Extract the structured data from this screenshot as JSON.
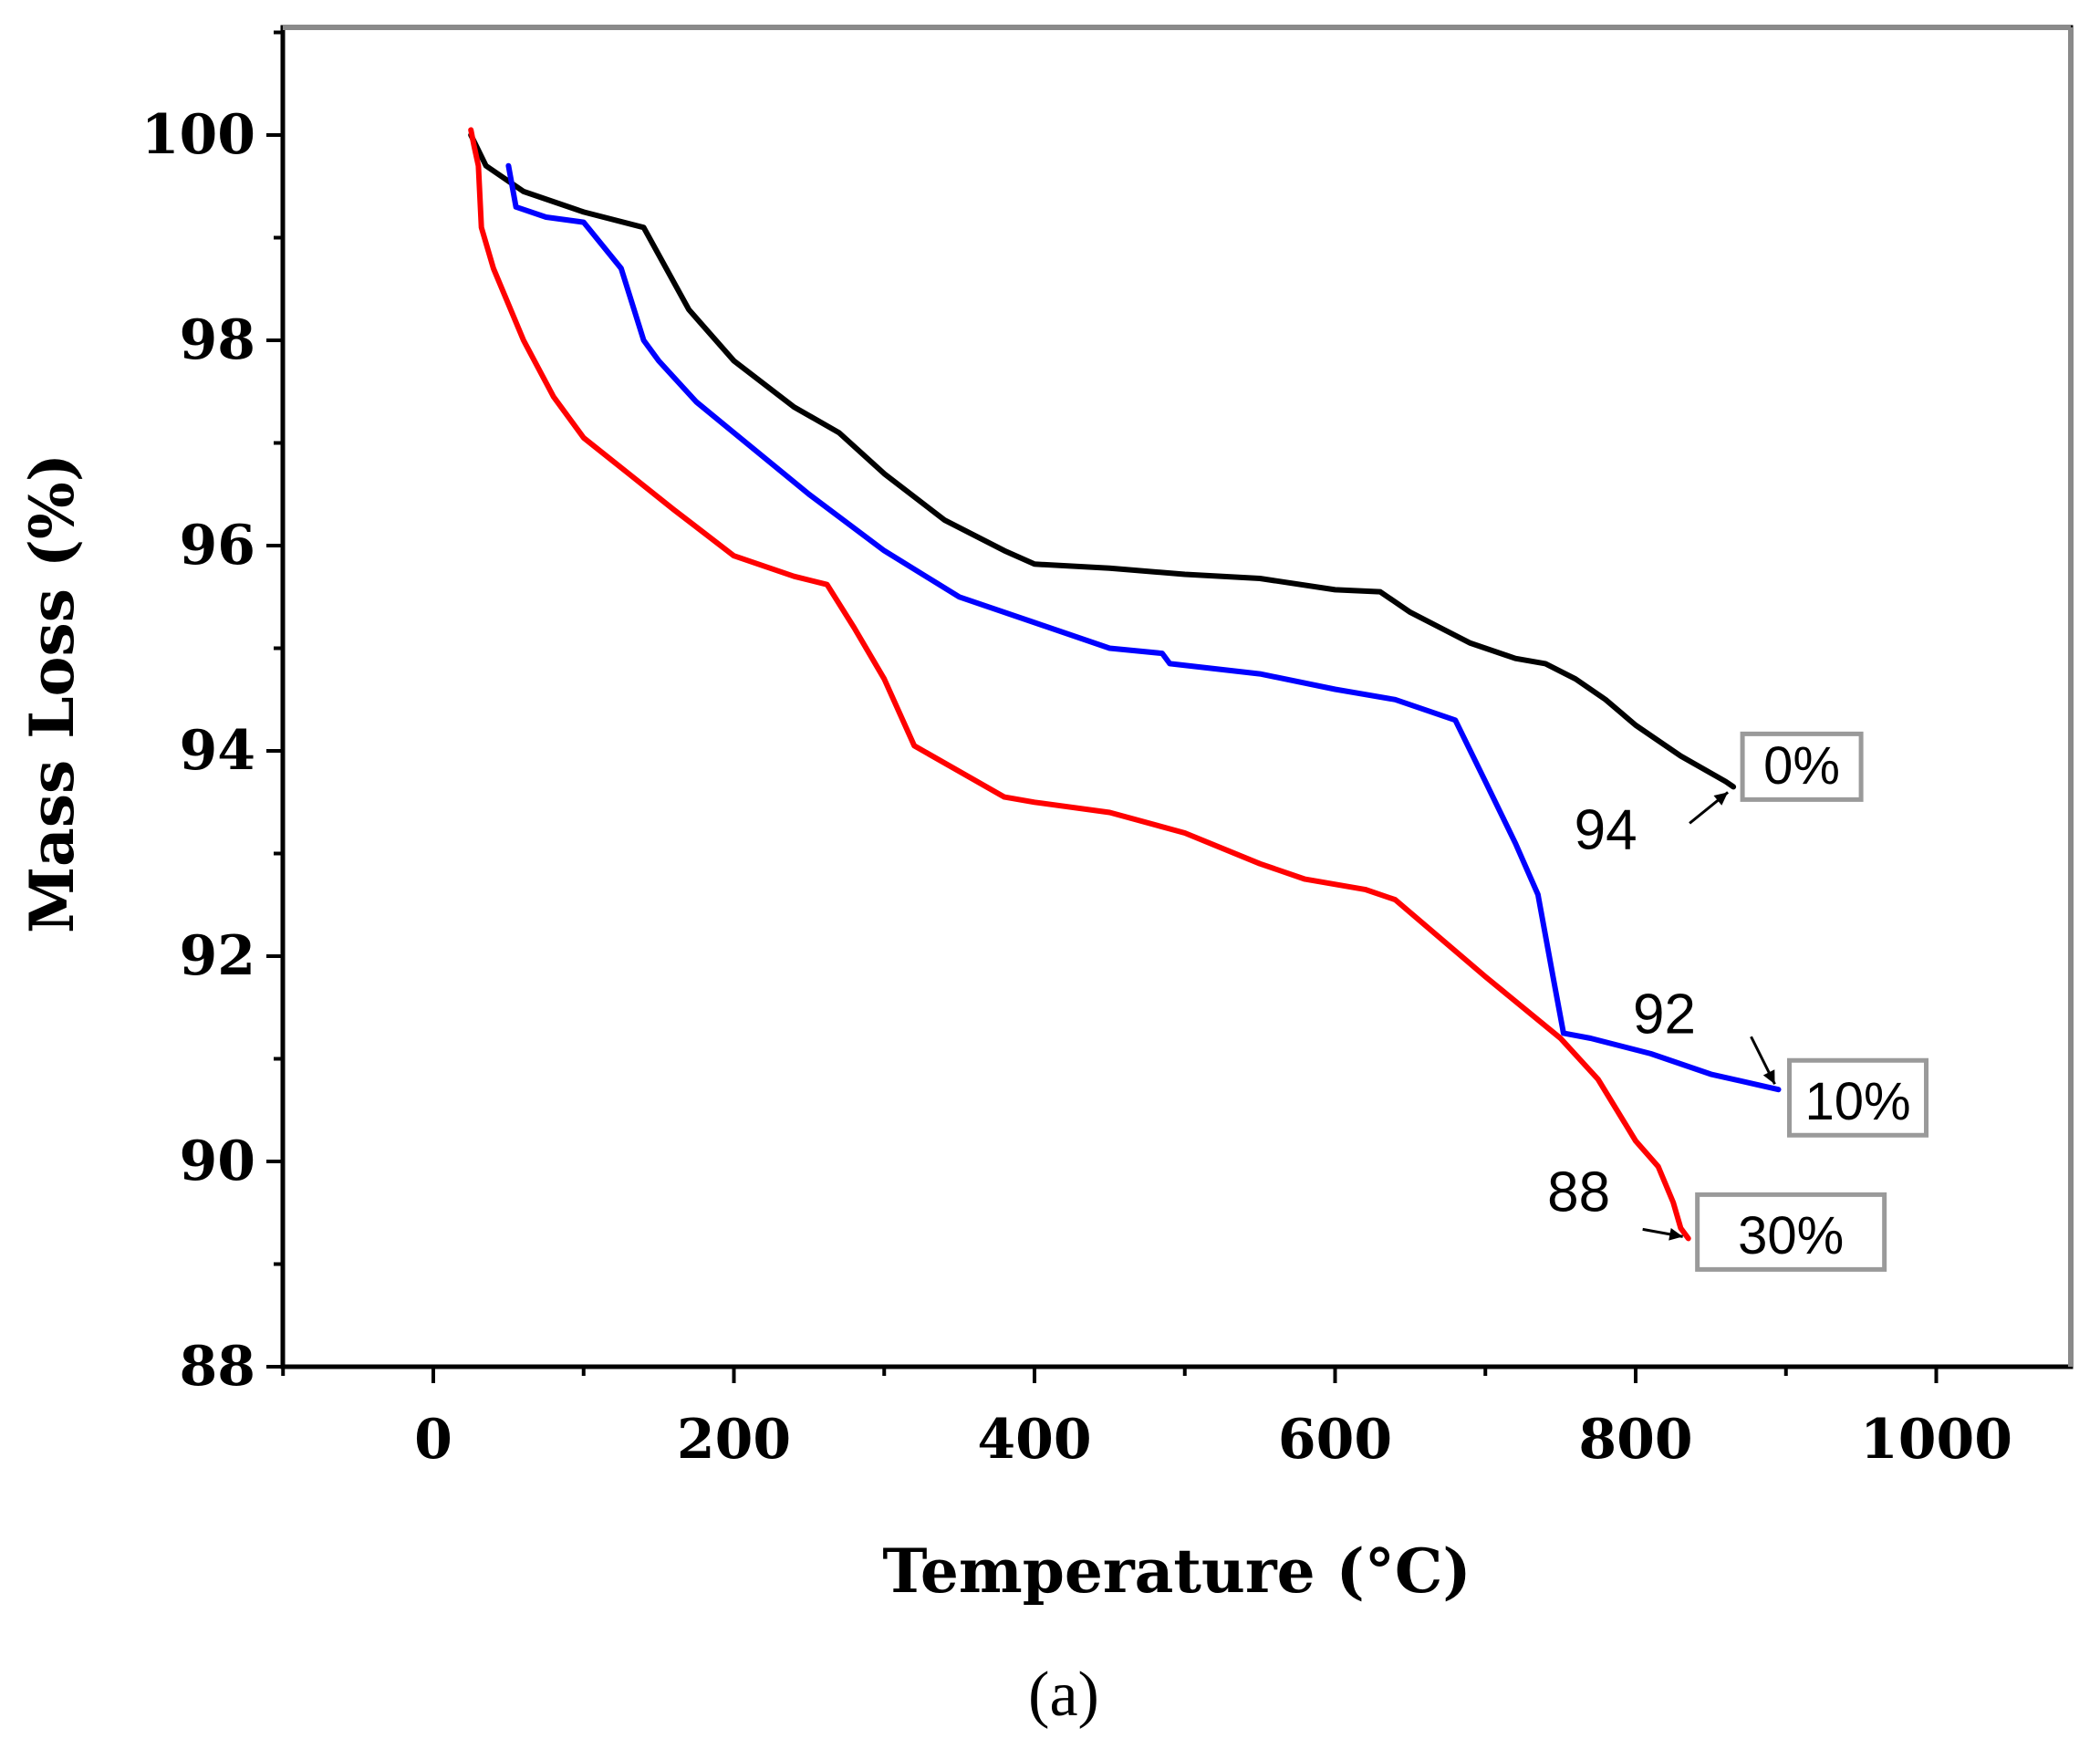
{
  "chart_data": {
    "type": "line",
    "panel_label": "(a)",
    "xlabel": "Temperature (°C)",
    "ylabel": "Mass Loss (%)",
    "xlim": [
      -100,
      1090
    ],
    "ylim": [
      88,
      101.1
    ],
    "xticks": [
      0,
      200,
      400,
      600,
      800,
      1000
    ],
    "yticks": [
      88,
      90,
      92,
      94,
      96,
      98,
      100
    ],
    "grid": false,
    "series": [
      {
        "name": "0%",
        "color": "#000000",
        "x": [
          25,
          35,
          60,
          100,
          140,
          170,
          200,
          240,
          270,
          300,
          340,
          380,
          400,
          450,
          500,
          550,
          600,
          630,
          650,
          670,
          690,
          720,
          740,
          760,
          780,
          800,
          830,
          860,
          865
        ],
        "y": [
          100,
          99.7,
          99.45,
          99.25,
          99.1,
          98.3,
          97.8,
          97.35,
          97.1,
          96.7,
          96.25,
          95.95,
          95.82,
          95.78,
          95.72,
          95.68,
          95.57,
          95.55,
          95.35,
          95.2,
          95.05,
          94.9,
          94.85,
          94.7,
          94.5,
          94.25,
          93.95,
          93.7,
          93.65
        ]
      },
      {
        "name": "10%",
        "color": "#0000ff",
        "x": [
          50,
          55,
          75,
          100,
          125,
          140,
          150,
          175,
          200,
          250,
          300,
          350,
          400,
          450,
          485,
          490,
          550,
          600,
          640,
          680,
          700,
          720,
          735,
          745,
          752,
          770,
          810,
          850,
          895
        ],
        "y": [
          99.7,
          99.3,
          99.2,
          99.15,
          98.7,
          98.0,
          97.8,
          97.4,
          97.1,
          96.5,
          95.95,
          95.5,
          95.25,
          95.0,
          94.95,
          94.85,
          94.75,
          94.6,
          94.5,
          94.3,
          93.7,
          93.1,
          92.6,
          91.8,
          91.25,
          91.2,
          91.05,
          90.85,
          90.7
        ]
      },
      {
        "name": "30%",
        "color": "#ff0000",
        "x": [
          25,
          27,
          30,
          32,
          40,
          60,
          80,
          100,
          130,
          160,
          200,
          240,
          262,
          280,
          300,
          320,
          350,
          380,
          400,
          450,
          500,
          550,
          580,
          620,
          640,
          700,
          750,
          775,
          800,
          815,
          825,
          830,
          835
        ],
        "y": [
          100.05,
          99.9,
          99.7,
          99.1,
          98.7,
          98.0,
          97.45,
          97.05,
          96.7,
          96.35,
          95.9,
          95.7,
          95.62,
          95.2,
          94.7,
          94.05,
          93.8,
          93.55,
          93.5,
          93.4,
          93.2,
          92.9,
          92.75,
          92.65,
          92.55,
          91.8,
          91.2,
          90.8,
          90.2,
          89.95,
          89.6,
          89.35,
          89.25
        ]
      }
    ],
    "annotations": [
      {
        "text": "94",
        "series": "0%"
      },
      {
        "text": "92",
        "series": "10%"
      },
      {
        "text": "88",
        "series": "30%"
      }
    ]
  }
}
